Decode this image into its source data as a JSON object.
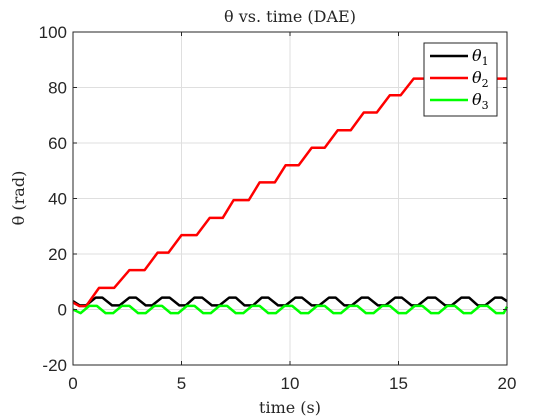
{
  "chart_data": {
    "type": "line",
    "title": "θ vs. time (DAE)",
    "xlabel": "time (s)",
    "ylabel": "θ (rad)",
    "xlim": [
      0,
      20
    ],
    "ylim": [
      -20,
      100
    ],
    "xticks": [
      0,
      5,
      10,
      15,
      20
    ],
    "yticks": [
      -20,
      0,
      20,
      40,
      60,
      80,
      100
    ],
    "x_tick_labels": [
      "0",
      "5",
      "10",
      "15",
      "20"
    ],
    "y_tick_labels": [
      "-20",
      "0",
      "20",
      "40",
      "60",
      "80",
      "100"
    ],
    "grid": true,
    "legend_position": "top-right",
    "legend": [
      {
        "base": "θ",
        "sub": "1",
        "color": "#000000"
      },
      {
        "base": "θ",
        "sub": "2",
        "color": "#ff0000"
      },
      {
        "base": "θ",
        "sub": "3",
        "color": "#00ff00"
      }
    ],
    "series": [
      {
        "color": "#000000",
        "x": [
          0,
          0.3,
          0.6,
          1.05,
          1.35,
          1.8,
          2.15,
          2.6,
          2.9,
          3.35,
          3.65,
          4.1,
          4.45,
          4.9,
          5.2,
          5.6,
          5.95,
          6.4,
          6.75,
          7.2,
          7.5,
          7.9,
          8.3,
          8.7,
          9.0,
          9.45,
          9.8,
          10.25,
          10.55,
          11.0,
          11.35,
          11.8,
          12.1,
          12.5,
          12.85,
          13.3,
          13.6,
          14.05,
          14.4,
          14.85,
          15.15,
          15.6,
          15.9,
          16.35,
          16.7,
          17.15,
          17.45,
          17.9,
          18.25,
          18.65,
          19.0,
          19.45,
          19.75,
          20.0
        ],
        "y": [
          3,
          1.5,
          1.5,
          4.3,
          4.3,
          1.5,
          1.5,
          4.3,
          4.3,
          1.5,
          1.5,
          4.3,
          4.3,
          1.5,
          1.5,
          4.3,
          4.3,
          1.5,
          1.5,
          4.3,
          4.3,
          1.5,
          1.5,
          4.3,
          4.3,
          1.5,
          1.5,
          4.3,
          4.3,
          1.5,
          1.5,
          4.3,
          4.3,
          1.5,
          1.5,
          4.3,
          4.3,
          1.5,
          1.5,
          4.3,
          4.3,
          1.5,
          1.5,
          4.3,
          4.3,
          1.5,
          1.5,
          4.3,
          4.3,
          1.5,
          1.5,
          4.3,
          4.3,
          3.0
        ]
      },
      {
        "color": "#ff0000",
        "x": [
          0,
          0.3,
          0.6,
          1.2,
          1.9,
          2.6,
          3.3,
          3.9,
          4.4,
          5.0,
          5.7,
          6.3,
          6.9,
          7.4,
          8.1,
          8.6,
          9.3,
          9.8,
          10.4,
          11.0,
          11.6,
          12.2,
          12.8,
          13.4,
          14.0,
          14.6,
          15.1,
          15.7,
          16.3,
          16.9,
          17.5,
          18.1,
          18.7,
          19.3,
          19.9,
          20.0
        ],
        "y": [
          2.5,
          1.2,
          1.2,
          7.8,
          7.8,
          14.2,
          14.2,
          20.5,
          20.5,
          26.8,
          26.8,
          33.0,
          33.0,
          39.4,
          39.4,
          45.8,
          45.8,
          52.0,
          52.0,
          58.3,
          58.3,
          64.6,
          64.6,
          71.0,
          71.0,
          77.2,
          77.2,
          83.2,
          83.2,
          83.2,
          83.2,
          83.2,
          83.2,
          83.2,
          83.2,
          83.2
        ]
      },
      {
        "color": "#00ff00",
        "x": [
          0,
          0.35,
          0.75,
          1.1,
          1.5,
          1.85,
          2.25,
          2.6,
          3.0,
          3.35,
          3.75,
          4.1,
          4.5,
          4.85,
          5.25,
          5.6,
          6.0,
          6.35,
          6.75,
          7.1,
          7.5,
          7.85,
          8.25,
          8.6,
          9.0,
          9.35,
          9.75,
          10.1,
          10.5,
          10.85,
          11.25,
          11.6,
          12.0,
          12.35,
          12.75,
          13.1,
          13.5,
          13.85,
          14.25,
          14.6,
          15.0,
          15.35,
          15.75,
          16.1,
          16.5,
          16.85,
          17.25,
          17.6,
          18.0,
          18.35,
          18.75,
          19.1,
          19.5,
          19.85,
          20.0
        ],
        "y": [
          0,
          -1.3,
          1.3,
          1.3,
          -1.3,
          -1.3,
          1.3,
          1.3,
          -1.3,
          -1.3,
          1.3,
          1.3,
          -1.3,
          -1.3,
          1.3,
          1.3,
          -1.3,
          -1.3,
          1.3,
          1.3,
          -1.3,
          -1.3,
          1.3,
          1.3,
          -1.3,
          -1.3,
          1.3,
          1.3,
          -1.3,
          -1.3,
          1.3,
          1.3,
          -1.3,
          -1.3,
          1.3,
          1.3,
          -1.3,
          -1.3,
          1.3,
          1.3,
          -1.3,
          -1.3,
          1.3,
          1.3,
          -1.3,
          -1.3,
          1.3,
          1.3,
          -1.3,
          -1.3,
          1.3,
          1.3,
          -1.3,
          -1.3,
          1.0
        ]
      }
    ]
  }
}
